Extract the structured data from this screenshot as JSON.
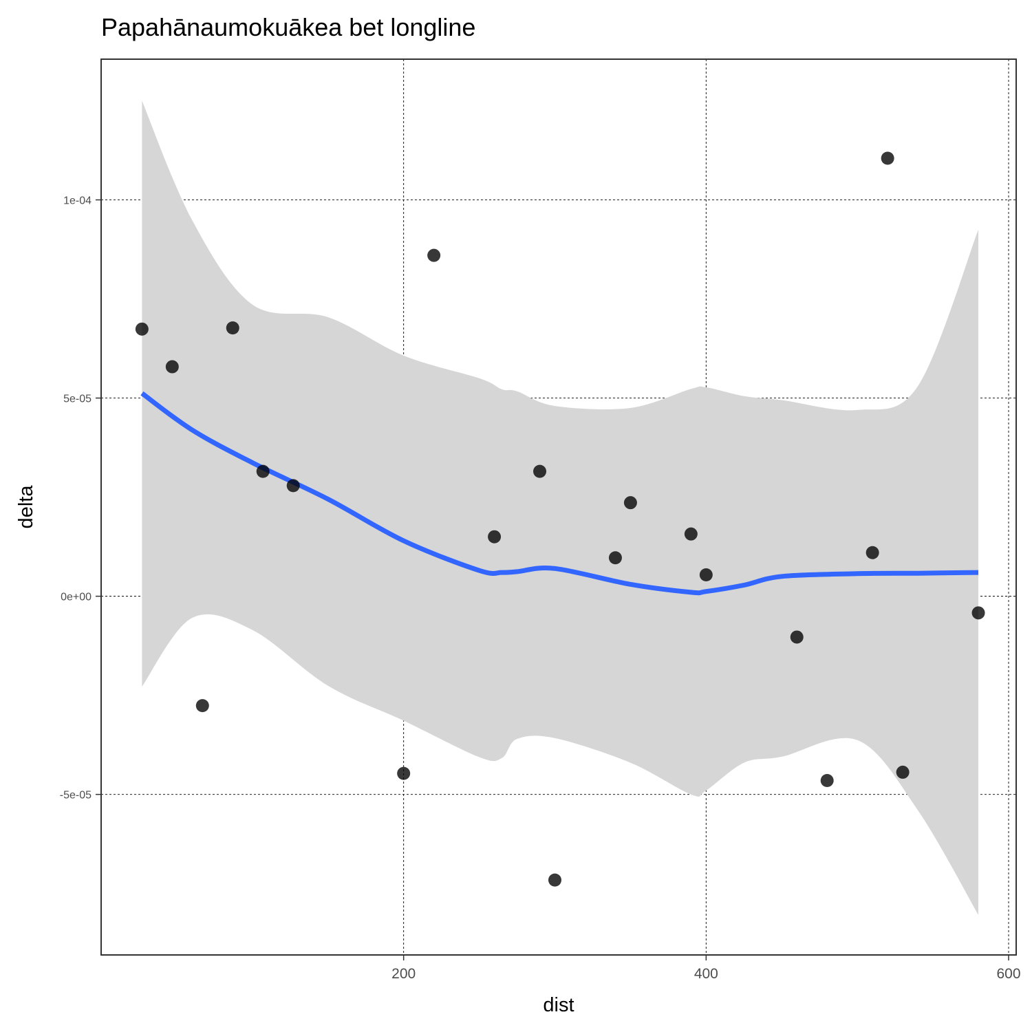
{
  "chart_data": {
    "type": "scatter",
    "title": "Papahānaumokuākea bet longline",
    "xlabel": "dist",
    "ylabel": "delta",
    "xlim": [
      0,
      605
    ],
    "ylim": [
      -9.05e-05,
      0.0001355
    ],
    "x_ticks": [
      {
        "value": 200,
        "label": "200"
      },
      {
        "value": 400,
        "label": "400"
      },
      {
        "value": 600,
        "label": "600"
      }
    ],
    "y_ticks": [
      {
        "value": -5e-05,
        "label": "-5e-05"
      },
      {
        "value": 0,
        "label": "0e+00"
      },
      {
        "value": 5e-05,
        "label": "5e-05"
      },
      {
        "value": 0.0001,
        "label": "1e-04"
      }
    ],
    "grid": true,
    "points": [
      {
        "x": 27,
        "y": 6.74e-05
      },
      {
        "x": 47,
        "y": 5.79e-05
      },
      {
        "x": 67,
        "y": -2.76e-05
      },
      {
        "x": 87,
        "y": 6.77e-05
      },
      {
        "x": 107,
        "y": 3.15e-05
      },
      {
        "x": 127,
        "y": 2.79e-05
      },
      {
        "x": 200,
        "y": -4.47e-05
      },
      {
        "x": 220,
        "y": 8.6e-05
      },
      {
        "x": 260,
        "y": 1.5e-05
      },
      {
        "x": 290,
        "y": 3.15e-05
      },
      {
        "x": 300,
        "y": -7.16e-05
      },
      {
        "x": 340,
        "y": 9.7e-06
      },
      {
        "x": 350,
        "y": 2.36e-05
      },
      {
        "x": 390,
        "y": 1.57e-05
      },
      {
        "x": 400,
        "y": 5.4e-06
      },
      {
        "x": 460,
        "y": -1.03e-05
      },
      {
        "x": 480,
        "y": -4.65e-05
      },
      {
        "x": 510,
        "y": 1.1e-05
      },
      {
        "x": 520,
        "y": 0.0001105
      },
      {
        "x": 530,
        "y": -4.44e-05
      },
      {
        "x": 580,
        "y": -4.2e-06
      }
    ],
    "smooth": {
      "color": "#3366ff",
      "x": [
        27,
        60,
        100,
        150,
        200,
        250,
        265,
        275,
        300,
        350,
        390,
        400,
        425,
        450,
        500,
        540,
        580
      ],
      "y": [
        5.12e-05,
        4.2e-05,
        3.37e-05,
        2.45e-05,
        1.4e-05,
        6.5e-06,
        6e-06,
        6.2e-06,
        7e-06,
        3e-06,
        1e-06,
        1.2e-06,
        2.8e-06,
        5e-06,
        5.7e-06,
        5.8e-06,
        6e-06
      ],
      "ci_upper": [
        0.000125,
        9.5e-05,
        7.36e-05,
        7.04e-05,
        6.07e-05,
        5.5e-05,
        5.22e-05,
        5.17e-05,
        4.8e-05,
        4.75e-05,
        5.23e-05,
        5.27e-05,
        5.05e-05,
        4.95e-05,
        4.7e-05,
        5.3e-05,
        9.25e-05
      ],
      "ci_lower": [
        -2.28e-05,
        -5.5e-06,
        -8.5e-06,
        -2.26e-05,
        -3.14e-05,
        -4.06e-05,
        -4.08e-05,
        -3.6e-05,
        -3.58e-05,
        -4.2e-05,
        -5e-05,
        -4.9e-05,
        -4.2e-05,
        -4.05e-05,
        -3.63e-05,
        -5.4e-05,
        -8.04e-05
      ],
      "band_color": "#d6d6d6"
    }
  }
}
